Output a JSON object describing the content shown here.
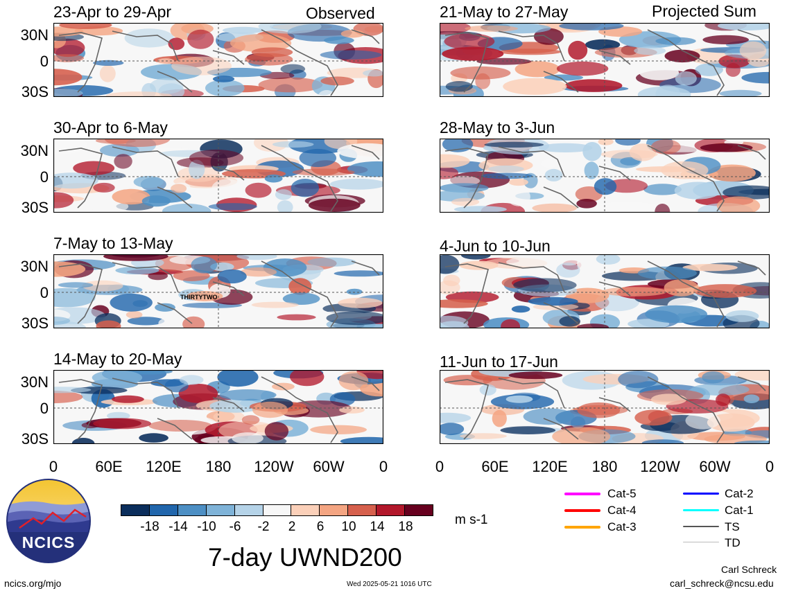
{
  "columns": {
    "left_tag": "Observed",
    "right_tag": "Projected Sum"
  },
  "panels": {
    "left": [
      {
        "title": "23-Apr to 29-Apr"
      },
      {
        "title": "30-Apr to 6-May"
      },
      {
        "title": "7-May to 13-May",
        "annotation": "THIRTYTWO"
      },
      {
        "title": "14-May to 20-May"
      }
    ],
    "right": [
      {
        "title": "21-May to 27-May"
      },
      {
        "title": "28-May to 3-Jun"
      },
      {
        "title": "4-Jun to 10-Jun"
      },
      {
        "title": "11-Jun to 17-Jun"
      }
    ]
  },
  "lat_labels": [
    "30N",
    "0",
    "30S"
  ],
  "lon_labels": [
    "0",
    "60E",
    "120E",
    "180",
    "120W",
    "60W",
    "0"
  ],
  "colorbar": {
    "colors": [
      "#0b2e5c",
      "#2166ac",
      "#4d8fc4",
      "#7fb3d8",
      "#b5d3e8",
      "#f7f7f7",
      "#fbd0b9",
      "#f4a582",
      "#d6604d",
      "#b2182b",
      "#67001f"
    ],
    "ticks": [
      "-18",
      "-14",
      "-10",
      "-6",
      "-2",
      "2",
      "6",
      "10",
      "14",
      "18"
    ],
    "units": "m s-1"
  },
  "legend": [
    {
      "label": "Cat-5",
      "color": "#ff00ff"
    },
    {
      "label": "Cat-4",
      "color": "#ff0000"
    },
    {
      "label": "Cat-3",
      "color": "#ffa500"
    },
    {
      "label": "Cat-2",
      "color": "#0000ff"
    },
    {
      "label": "Cat-1",
      "color": "#00ffff"
    },
    {
      "label": "TS",
      "color": "#555555"
    },
    {
      "label": "TD",
      "color": "#bbbbbb"
    }
  ],
  "logo": {
    "text": "NCICS"
  },
  "main_title": "7-day UWND200",
  "footer": {
    "url": "ncics.org/mjo",
    "timestamp": "Wed 2025-05-21 1016 UTC",
    "author": "Carl Schreck",
    "email": "carl_schreck@ncsu.edu"
  }
}
